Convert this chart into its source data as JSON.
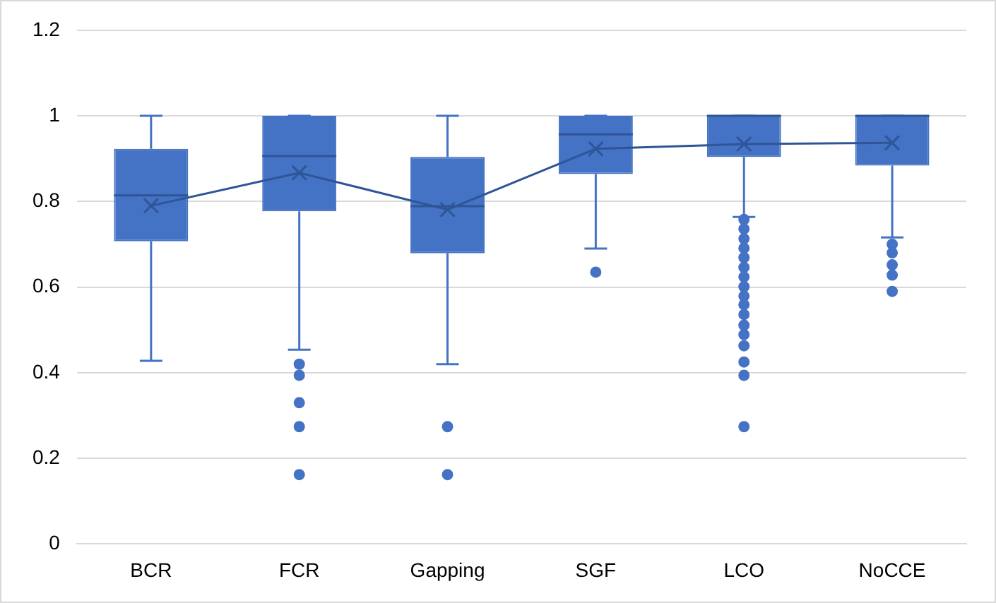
{
  "chart_data": {
    "type": "box",
    "categories": [
      "BCR",
      "FCR",
      "Gapping",
      "SGF",
      "LCO",
      "NoCCE"
    ],
    "color": "#4472c4",
    "boxes": [
      {
        "low": 0.428,
        "q1": 0.707,
        "median": 0.814,
        "q3": 0.923,
        "high": 1.0
      },
      {
        "low": 0.454,
        "q1": 0.777,
        "median": 0.906,
        "q3": 1.0,
        "high": 1.0,
        "outliers": [
          0.42,
          0.394,
          0.33,
          0.274,
          0.162
        ]
      },
      {
        "low": 0.42,
        "q1": 0.679,
        "median": 0.789,
        "q3": 0.904,
        "high": 1.0,
        "outliers": [
          0.274,
          0.162
        ]
      },
      {
        "low": 0.69,
        "q1": 0.864,
        "median": 0.957,
        "q3": 1.0,
        "high": 1.0,
        "outliers": [
          0.635
        ]
      },
      {
        "low": 0.764,
        "q1": 0.904,
        "median": 1.0,
        "q3": 1.0,
        "high": 1.0,
        "outliers": [
          0.758,
          0.736,
          0.713,
          0.691,
          0.669,
          0.646,
          0.624,
          0.601,
          0.579,
          0.559,
          0.536,
          0.511,
          0.489,
          0.463,
          0.425,
          0.394,
          0.274
        ]
      },
      {
        "low": 0.716,
        "q1": 0.884,
        "median": 1.0,
        "q3": 1.0,
        "high": 1.0,
        "outliers": [
          0.7,
          0.68,
          0.652,
          0.628,
          0.59
        ]
      }
    ],
    "series": [
      {
        "type": "line",
        "color": "#2f5597",
        "marker": "cross",
        "values": [
          0.79,
          0.867,
          0.781,
          0.923,
          0.934,
          0.937
        ]
      }
    ],
    "ylim": [
      0,
      1.2
    ],
    "yticks": [
      0,
      0.2,
      0.4,
      0.6,
      0.8,
      1,
      1.2
    ],
    "grid": "y",
    "legend": false
  }
}
